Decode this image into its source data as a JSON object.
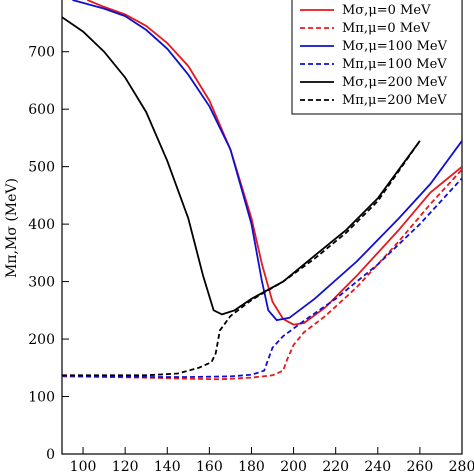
{
  "chart_data": {
    "type": "line",
    "title": "",
    "xlabel": "",
    "ylabel": "Mπ,Mσ (MeV)",
    "xlim": [
      90,
      280
    ],
    "ylim": [
      0,
      790
    ],
    "xticks": [
      100,
      120,
      140,
      160,
      180,
      200,
      220,
      240,
      260,
      280
    ],
    "yticks": [
      0,
      100,
      200,
      300,
      400,
      500,
      600,
      700
    ],
    "grid": false,
    "legend_position": "top-right",
    "series": [
      {
        "name": "Mσ,μ=0 MeV",
        "color": "#e41a1c",
        "dash": "solid",
        "points": [
          [
            102,
            790
          ],
          [
            110,
            778
          ],
          [
            120,
            765
          ],
          [
            130,
            745
          ],
          [
            140,
            715
          ],
          [
            150,
            675
          ],
          [
            160,
            615
          ],
          [
            170,
            530
          ],
          [
            180,
            410
          ],
          [
            185,
            330
          ],
          [
            190,
            265
          ],
          [
            195,
            235
          ],
          [
            200,
            225
          ],
          [
            205,
            228
          ],
          [
            215,
            255
          ],
          [
            230,
            310
          ],
          [
            250,
            390
          ],
          [
            265,
            455
          ],
          [
            280,
            500
          ]
        ]
      },
      {
        "name": "Mπ,μ=0 MeV",
        "color": "#e41a1c",
        "dash": "dashed",
        "points": [
          [
            90,
            135
          ],
          [
            110,
            134
          ],
          [
            130,
            133
          ],
          [
            150,
            131
          ],
          [
            165,
            130
          ],
          [
            180,
            133
          ],
          [
            190,
            137
          ],
          [
            195,
            145
          ],
          [
            197,
            165
          ],
          [
            200,
            190
          ],
          [
            205,
            212
          ],
          [
            215,
            240
          ],
          [
            230,
            290
          ],
          [
            250,
            370
          ],
          [
            265,
            435
          ],
          [
            280,
            495
          ]
        ]
      },
      {
        "name": "Mσ,μ=100 MeV",
        "color": "#1010d0",
        "dash": "solid",
        "points": [
          [
            95,
            790
          ],
          [
            110,
            775
          ],
          [
            120,
            762
          ],
          [
            130,
            738
          ],
          [
            140,
            705
          ],
          [
            150,
            660
          ],
          [
            160,
            605
          ],
          [
            170,
            530
          ],
          [
            180,
            400
          ],
          [
            185,
            300
          ],
          [
            188,
            250
          ],
          [
            192,
            233
          ],
          [
            198,
            237
          ],
          [
            210,
            270
          ],
          [
            230,
            335
          ],
          [
            250,
            410
          ],
          [
            265,
            470
          ],
          [
            280,
            545
          ]
        ]
      },
      {
        "name": "Mπ,μ=100 MeV",
        "color": "#1010d0",
        "dash": "dashed",
        "points": [
          [
            90,
            136
          ],
          [
            110,
            135
          ],
          [
            130,
            134
          ],
          [
            150,
            134
          ],
          [
            170,
            135
          ],
          [
            180,
            138
          ],
          [
            186,
            145
          ],
          [
            188,
            165
          ],
          [
            190,
            185
          ],
          [
            195,
            205
          ],
          [
            205,
            232
          ],
          [
            220,
            270
          ],
          [
            240,
            330
          ],
          [
            260,
            400
          ],
          [
            280,
            480
          ]
        ]
      },
      {
        "name": "Mσ,μ=200 MeV",
        "color": "#000000",
        "dash": "solid",
        "points": [
          [
            90,
            760
          ],
          [
            100,
            735
          ],
          [
            110,
            700
          ],
          [
            120,
            655
          ],
          [
            130,
            595
          ],
          [
            140,
            510
          ],
          [
            150,
            410
          ],
          [
            157,
            310
          ],
          [
            162,
            250
          ],
          [
            166,
            243
          ],
          [
            172,
            250
          ],
          [
            180,
            270
          ],
          [
            195,
            300
          ],
          [
            210,
            345
          ],
          [
            225,
            390
          ],
          [
            240,
            445
          ],
          [
            260,
            545
          ]
        ]
      },
      {
        "name": "Mπ,μ=200 MeV",
        "color": "#000000",
        "dash": "dashed",
        "points": [
          [
            90,
            137
          ],
          [
            110,
            137
          ],
          [
            130,
            137
          ],
          [
            145,
            140
          ],
          [
            155,
            150
          ],
          [
            161,
            160
          ],
          [
            163,
            175
          ],
          [
            165,
            215
          ],
          [
            170,
            240
          ],
          [
            180,
            268
          ],
          [
            195,
            300
          ],
          [
            210,
            340
          ],
          [
            225,
            385
          ],
          [
            240,
            440
          ],
          [
            260,
            545
          ]
        ]
      }
    ]
  }
}
